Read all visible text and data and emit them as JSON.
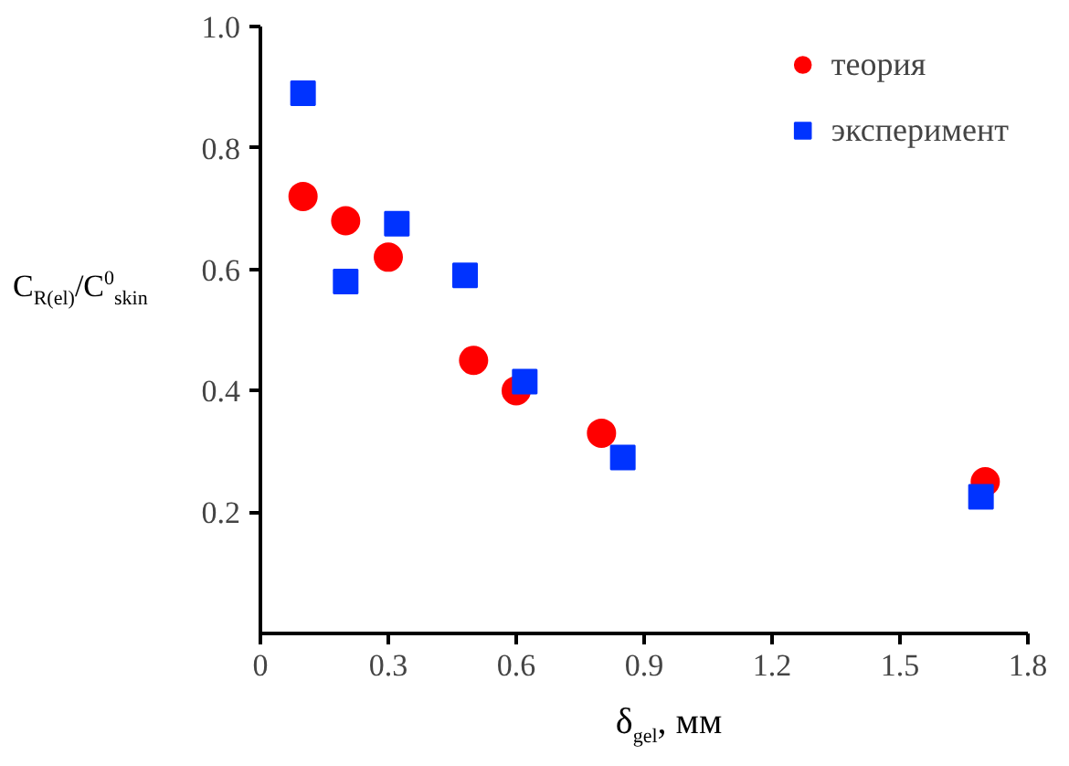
{
  "chart_data": {
    "type": "scatter",
    "xlabel": "δ$_{gel}$, мм",
    "ylabel": "C$_{R(el)}$/C$^{0}$$_{skin}$",
    "xlim": [
      0,
      1.8
    ],
    "ylim": [
      0,
      1.0
    ],
    "xticks": [
      0,
      0.3,
      0.6,
      0.9,
      1.2,
      1.5,
      1.8
    ],
    "yticks": [
      0.2,
      0.4,
      0.6,
      0.8,
      {
        "value": 1.0,
        "label": "1.0"
      }
    ],
    "grid": false,
    "legend": "top right",
    "series": [
      {
        "name": "теория",
        "color": "#ff0000",
        "marker": "circle",
        "x": [
          0.1,
          0.2,
          0.3,
          0.5,
          0.6,
          0.8,
          1.7
        ],
        "values": [
          0.72,
          0.68,
          0.62,
          0.45,
          0.4,
          0.33,
          0.25
        ]
      },
      {
        "name": "эксперимент",
        "color": "#0033ff",
        "marker": "square",
        "x": [
          0.1,
          0.2,
          0.32,
          0.48,
          0.62,
          0.85,
          1.69
        ],
        "values": [
          0.89,
          0.58,
          0.675,
          0.59,
          0.415,
          0.29,
          0.225
        ]
      }
    ]
  }
}
